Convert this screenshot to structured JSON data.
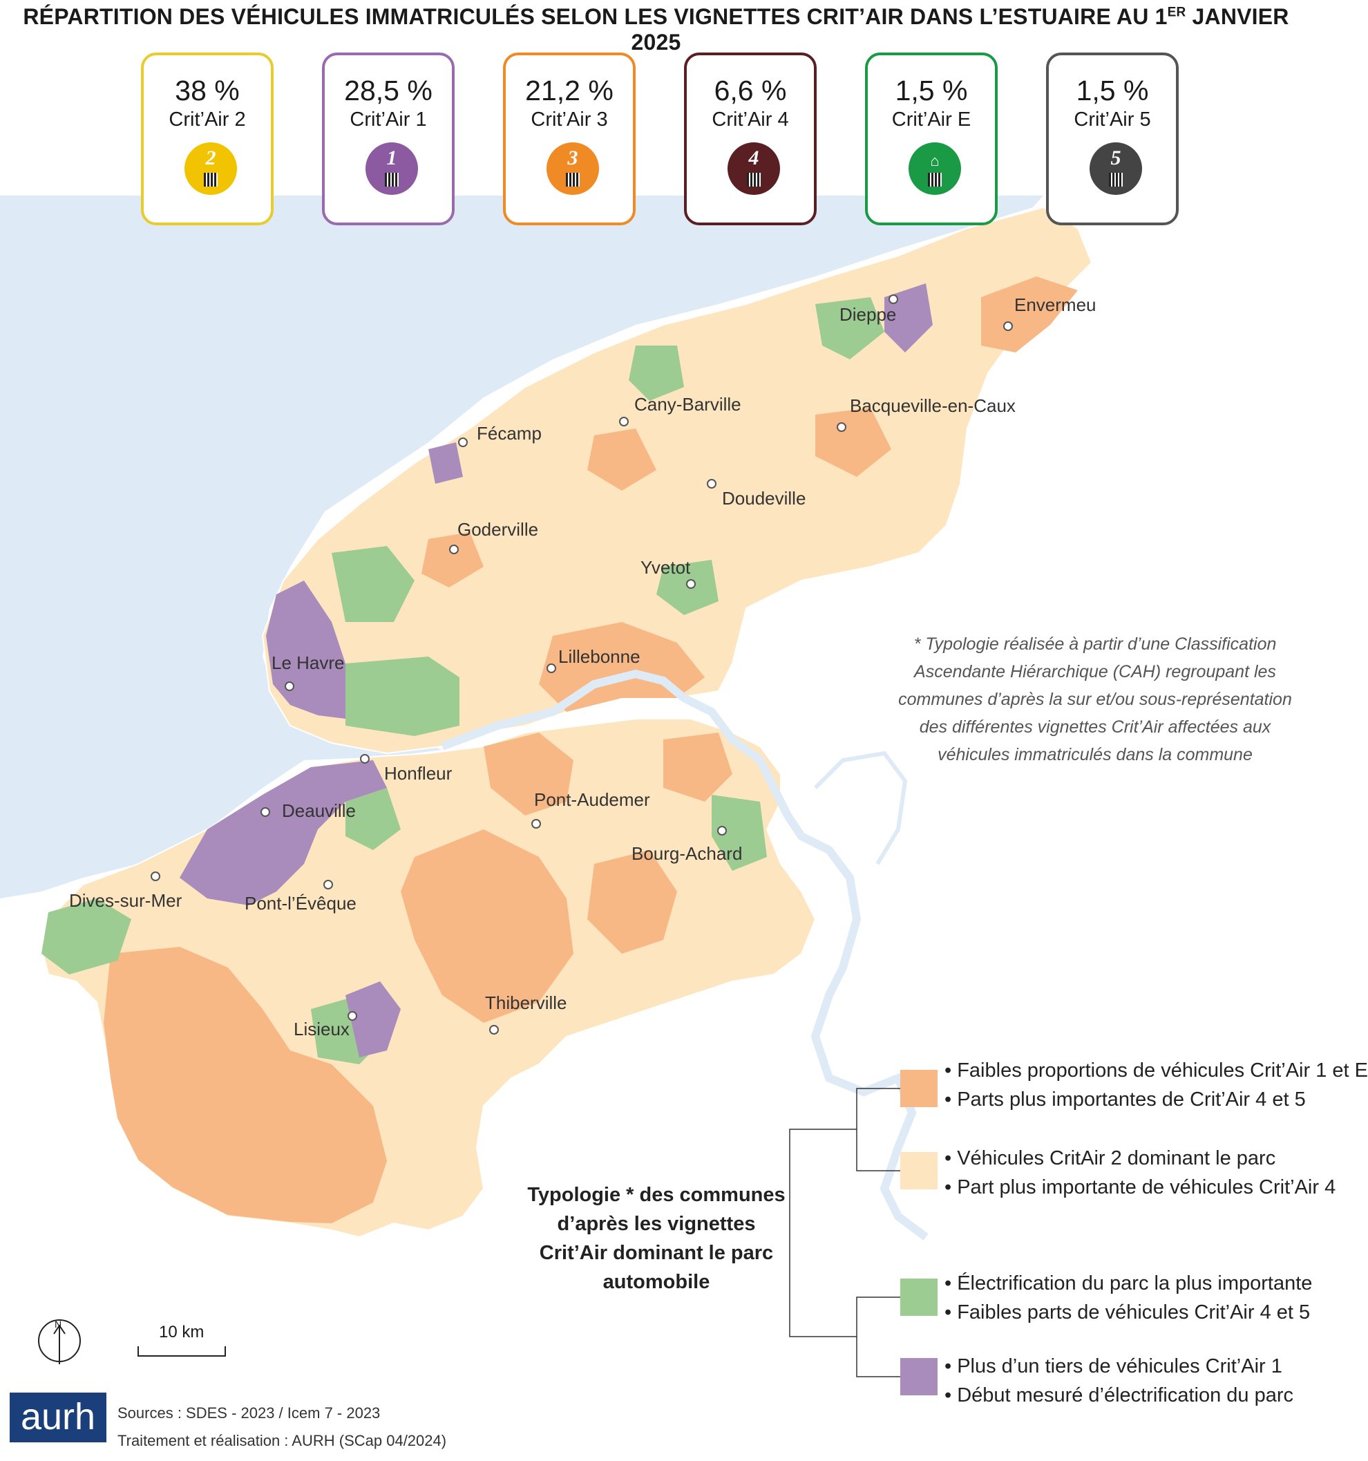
{
  "title": {
    "main": "RÉPARTITION DES VÉHICULES IMMATRICULÉS SELON LES VIGNETTES CRIT’AIR DANS L’ESTUAIRE AU 1",
    "sup": "ER",
    "end": " JANVIER 2025"
  },
  "cards": [
    {
      "pct": "38 %",
      "label": "Crit’Air 2",
      "num": "2",
      "color": "#f2c300"
    },
    {
      "pct": "28,5 %",
      "label": "Crit’Air 1",
      "num": "1",
      "color": "#8b5aa0"
    },
    {
      "pct": "21,2 %",
      "label": "Crit’Air 3",
      "num": "3",
      "color": "#f08a24"
    },
    {
      "pct": "6,6 %",
      "label": "Crit’Air 4",
      "num": "4",
      "color": "#5a1f22"
    },
    {
      "pct": "1,5 %",
      "label": "Crit’Air E",
      "num": "",
      "color": "#1a9a45"
    },
    {
      "pct": "1,5 %",
      "label": "Crit’Air 5",
      "num": "5",
      "color": "#444444"
    }
  ],
  "cities": [
    "Dieppe",
    "Envermeu",
    "Cany-Barville",
    "Bacqueville-en-Caux",
    "Fécamp",
    "Doudeville",
    "Goderville",
    "Yvetot",
    "Le Havre",
    "Lillebonne",
    "Honfleur",
    "Pont-Audemer",
    "Deauville",
    "Bourg-Achard",
    "Dives-sur-Mer",
    "Pont-l’Évêque",
    "Thiberville",
    "Lisieux"
  ],
  "note": "* Typologie réalisée à partir d’une Classification Ascendante Hiérarchique (CAH) regroupant les communes d’après la sur et/ou sous-représentation des différentes vignettes Crit’Air affectées aux véhicules immatriculés dans la commune",
  "legend": {
    "title": "Typologie * des communes d’après les vignettes Crit’Air dominant le parc automobile",
    "classes": [
      {
        "color": "#f7b886",
        "line1": "• Faibles proportions de véhicules Crit’Air 1 et E",
        "line2": "• Parts plus importantes de Crit’Air 4 et 5"
      },
      {
        "color": "#fde6bf",
        "line1": "• Véhicules CritAir 2 dominant le parc",
        "line2": "• Part plus importante de véhicules Crit’Air 4"
      },
      {
        "color": "#9ccc92",
        "line1": "• Électrification du parc la plus importante",
        "line2": "• Faibles parts de véhicules Crit’Air 4 et 5"
      },
      {
        "color": "#a98cbc",
        "line1": "• Plus d’un tiers de véhicules Crit’Air 1",
        "line2": "• Début mesuré d’électrification du parc"
      }
    ]
  },
  "scale": "10 km",
  "north": "N",
  "logo": "aurh",
  "sources": {
    "line1": "Sources :  SDES - 2023 / Icem 7 - 2023",
    "line2": "Traitement  et réalisation : AURH (SCap 04/2024)"
  },
  "colors": {
    "sea": "#deebf6",
    "river": "#deebf6",
    "boundary": "#ffffff"
  }
}
